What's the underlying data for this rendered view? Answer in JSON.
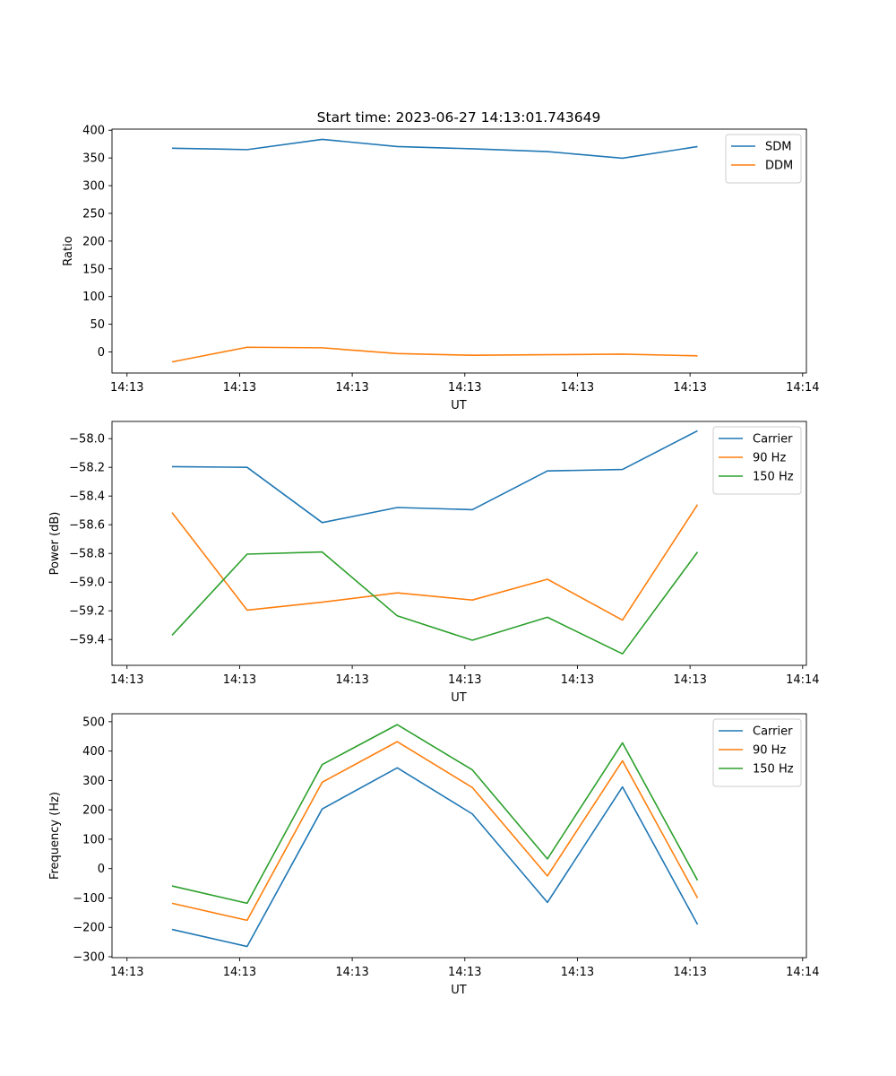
{
  "figure": {
    "title": "Start time: 2023-06-27 14:13:01.743649"
  },
  "colors": {
    "blue": "#1f77b4",
    "orange": "#ff7f0e",
    "green": "#2ca02c"
  },
  "chart_data": [
    {
      "type": "line",
      "title": "Start time: 2023-06-27 14:13:01.743649",
      "xlabel": "UT",
      "ylabel": "Ratio",
      "x": [
        1,
        2,
        3,
        4,
        5,
        6,
        7,
        8
      ],
      "xlim": [
        0.2,
        9.45
      ],
      "xticks": [
        0.4,
        1.9,
        3.4,
        4.9,
        6.4,
        7.9,
        9.4
      ],
      "xtick_labels": [
        "14:13",
        "14:13",
        "14:13",
        "14:13",
        "14:13",
        "14:13",
        "14:14"
      ],
      "ylim": [
        -38,
        402
      ],
      "yticks": [
        0,
        50,
        100,
        150,
        200,
        250,
        300,
        350,
        400
      ],
      "ytick_labels": [
        "0",
        "50",
        "100",
        "150",
        "200",
        "250",
        "300",
        "350",
        "400"
      ],
      "legend_position": "upper right",
      "grid": false,
      "series": [
        {
          "name": "SDM",
          "color": "#1f77b4",
          "values": [
            367.5,
            365,
            383.5,
            370.5,
            366.5,
            361.5,
            349.5,
            370.5
          ]
        },
        {
          "name": "DDM",
          "color": "#ff7f0e",
          "values": [
            -18,
            8.5,
            7.5,
            -3,
            -6,
            -5,
            -4,
            -7
          ]
        }
      ]
    },
    {
      "type": "line",
      "title": "",
      "xlabel": "UT",
      "ylabel": "Power (dB)",
      "x": [
        1,
        2,
        3,
        4,
        5,
        6,
        7,
        8
      ],
      "xlim": [
        0.2,
        9.45
      ],
      "xticks": [
        0.4,
        1.9,
        3.4,
        4.9,
        6.4,
        7.9,
        9.4
      ],
      "xtick_labels": [
        "14:13",
        "14:13",
        "14:13",
        "14:13",
        "14:13",
        "14:13",
        "14:14"
      ],
      "ylim": [
        -59.58,
        -57.88
      ],
      "yticks": [
        -59.4,
        -59.2,
        -59.0,
        -58.8,
        -58.6,
        -58.4,
        -58.2,
        -58.0
      ],
      "ytick_labels": [
        "−59.4",
        "−59.2",
        "−59.0",
        "−58.8",
        "−58.6",
        "−58.4",
        "−58.2",
        "−58.0"
      ],
      "legend_position": "upper right",
      "grid": false,
      "series": [
        {
          "name": "Carrier",
          "color": "#1f77b4",
          "values": [
            -58.195,
            -58.2,
            -58.585,
            -58.48,
            -58.495,
            -58.225,
            -58.215,
            -57.945
          ]
        },
        {
          "name": "90 Hz",
          "color": "#ff7f0e",
          "values": [
            -58.515,
            -59.195,
            -59.14,
            -59.075,
            -59.125,
            -58.98,
            -59.265,
            -58.46
          ]
        },
        {
          "name": "150 Hz",
          "color": "#2ca02c",
          "values": [
            -59.37,
            -58.805,
            -58.79,
            -59.235,
            -59.405,
            -59.245,
            -59.5,
            -58.79
          ]
        }
      ]
    },
    {
      "type": "line",
      "title": "",
      "xlabel": "UT",
      "ylabel": "Frequency (Hz)",
      "x": [
        1,
        2,
        3,
        4,
        5,
        6,
        7,
        8
      ],
      "xlim": [
        0.2,
        9.45
      ],
      "xticks": [
        0.4,
        1.9,
        3.4,
        4.9,
        6.4,
        7.9,
        9.4
      ],
      "xtick_labels": [
        "14:13",
        "14:13",
        "14:13",
        "14:13",
        "14:13",
        "14:13",
        "14:14"
      ],
      "ylim": [
        -303,
        527
      ],
      "yticks": [
        -300,
        -200,
        -100,
        0,
        100,
        200,
        300,
        400,
        500
      ],
      "ytick_labels": [
        "−300",
        "−200",
        "−100",
        "0",
        "100",
        "200",
        "300",
        "400",
        "500"
      ],
      "legend_position": "upper right",
      "grid": false,
      "series": [
        {
          "name": "Carrier",
          "color": "#1f77b4",
          "values": [
            -207,
            -265,
            203,
            343,
            186,
            -115,
            278,
            -190
          ]
        },
        {
          "name": "90 Hz",
          "color": "#ff7f0e",
          "values": [
            -118,
            -176,
            294,
            432,
            276,
            -25,
            367,
            -100
          ]
        },
        {
          "name": "150 Hz",
          "color": "#2ca02c",
          "values": [
            -59,
            -118,
            354,
            490,
            336,
            33,
            428,
            -40
          ]
        }
      ]
    }
  ]
}
